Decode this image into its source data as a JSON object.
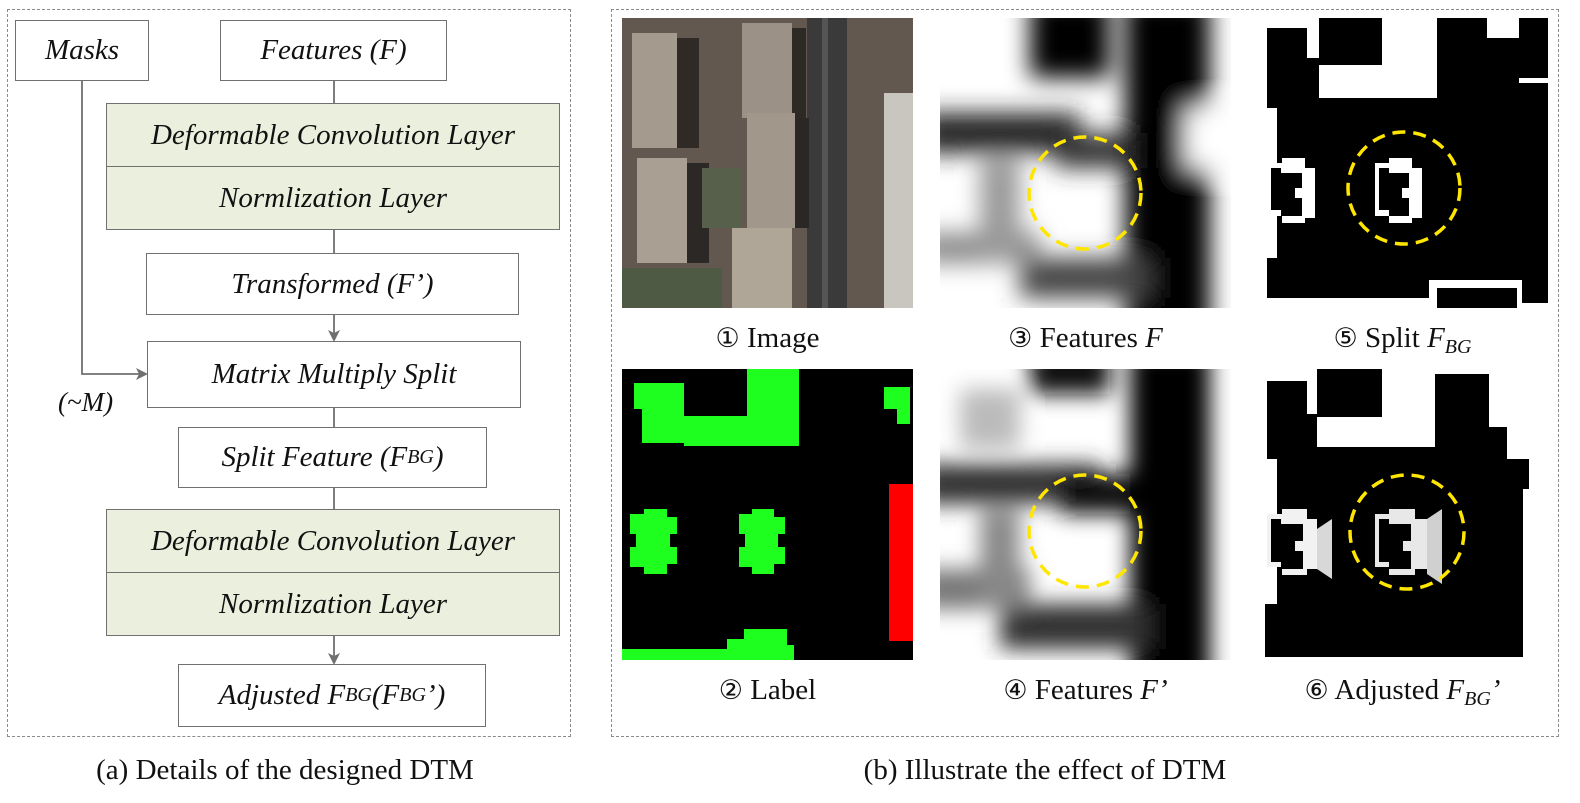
{
  "panel_a": {
    "caption": "(a) Details of the designed DTM",
    "masks": "Masks",
    "features": "Features (F)",
    "deform1": "Deformable Convolution Layer",
    "norm1": "Normlization Layer",
    "transformed": "Transformed (F’)",
    "matrix": "Matrix Multiply Split",
    "not_m": "(~M)",
    "split_pre": "Split Feature (F",
    "split_sub": "BG",
    "split_post": " )",
    "deform2": "Deformable Convolution Layer",
    "norm2": "Normlization Layer",
    "adj_pre": "Adjusted F",
    "adj_sub": "BG",
    "adj_mid": " (F",
    "adj_sub2": "BG",
    "adj_post": "’)"
  },
  "panel_b": {
    "caption": "(b) Illustrate the effect of DTM",
    "tiles": [
      {
        "num": "①",
        "label": "Image"
      },
      {
        "num": "③",
        "label": "Features",
        "var": "F"
      },
      {
        "num": "⑤",
        "label": "Split",
        "var": "F",
        "sub": "BG"
      },
      {
        "num": "②",
        "label": "Label"
      },
      {
        "num": "④",
        "label": "Features",
        "var": "F’"
      },
      {
        "num": "⑥",
        "label": "Adjusted",
        "var": "F",
        "sub": "BG",
        "post": "’"
      }
    ]
  },
  "colors": {
    "green_box": "#eaf0dd",
    "label_green": "#1fff1f",
    "label_red": "#ff0000",
    "highlight_circle": "#ffe600"
  }
}
